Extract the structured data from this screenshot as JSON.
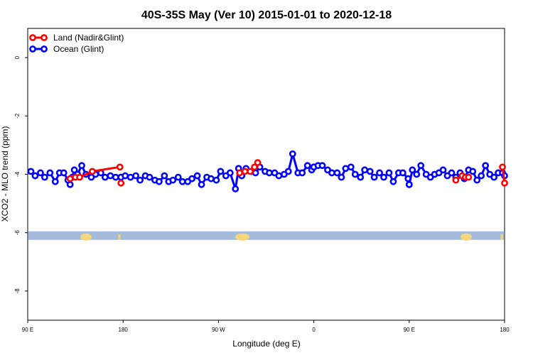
{
  "chart_data": {
    "type": "line",
    "title": "40S-35S May (Ver 10)   2015-01-01 to 2020-12-18",
    "xlabel": "Longitude (deg E)",
    "ylabel": "XCO2 - MLO trend (ppm)",
    "xlim": [
      90,
      450
    ],
    "ylim": [
      -9,
      1
    ],
    "x_ticks": [
      {
        "value": 90,
        "label": "90 E"
      },
      {
        "value": 180,
        "label": "180"
      },
      {
        "value": 270,
        "label": "90 W"
      },
      {
        "value": 360,
        "label": "0"
      },
      {
        "value": 450,
        "label": "90 E"
      },
      {
        "value": 540,
        "label": "180"
      }
    ],
    "y_ticks": [
      {
        "value": 0,
        "label": "0"
      },
      {
        "value": -2,
        "label": "-2"
      },
      {
        "value": -4,
        "label": "-4"
      },
      {
        "value": -6,
        "label": "-6"
      },
      {
        "value": -8,
        "label": "-8"
      }
    ],
    "legend_position": "top-left",
    "land_band_y": -6.1,
    "series": [
      {
        "name": "Land (Nadir&Glint)",
        "color": "#ff0000",
        "segments": [
          {
            "x": [
              130,
              135,
              139,
              151,
              177
            ],
            "y": [
              -4.15,
              -4.1,
              -4.1,
              -3.9,
              -3.75
            ]
          },
          {
            "x": [
              178
            ],
            "y": [
              -4.3
            ]
          },
          {
            "x": [
              290,
              295,
              300,
              304,
              307
            ],
            "y": [
              -3.95,
              -3.9,
              -3.9,
              -3.75,
              -3.6
            ]
          },
          {
            "x": [
              494,
              500
            ],
            "y": [
              -4.2,
              -4.05
            ]
          },
          {
            "x": [
              503,
              506
            ],
            "y": [
              -4.1,
              -4.1
            ]
          },
          {
            "x": [
              538,
              540
            ],
            "y": [
              -3.75,
              -4.3
            ]
          }
        ]
      },
      {
        "name": "Ocean (Glint)",
        "color": "#0000ff",
        "segments": [
          {
            "x": [
              93,
              97,
              102,
              106,
              111,
              116,
              120,
              124,
              128,
              130,
              132,
              134,
              137,
              141,
              145,
              150,
              154,
              159,
              163,
              168,
              173,
              178
            ],
            "y": [
              -3.9,
              -4.05,
              -3.95,
              -4.1,
              -3.95,
              -4.25,
              -3.95,
              -3.95,
              -4.2,
              -4.35,
              -4.1,
              -3.85,
              -4.0,
              -3.7,
              -4.0,
              -4.1,
              -4.0,
              -3.95,
              -4.1,
              -4.05,
              -4.1,
              -4.1
            ]
          },
          {
            "x": [
              178,
              182,
              187,
              192,
              196,
              201,
              205,
              210,
              214,
              219,
              223,
              227,
              232,
              236,
              241,
              245,
              250,
              254,
              259,
              263,
              268,
              272,
              277,
              281,
              286,
              289
            ],
            "y": [
              -4.1,
              -4.05,
              -4.1,
              -4.05,
              -4.2,
              -4.05,
              -4.1,
              -4.2,
              -4.25,
              -4.05,
              -4.25,
              -4.2,
              -4.1,
              -4.25,
              -4.25,
              -4.15,
              -4.05,
              -4.35,
              -4.1,
              -4.15,
              -4.2,
              -3.9,
              -4.05,
              -3.95,
              -4.5,
              -3.8
            ]
          },
          {
            "x": [
              289,
              292,
              296,
              301,
              305,
              309,
              314,
              318,
              323,
              327,
              332,
              336,
              340,
              345,
              349,
              354,
              358,
              360
            ],
            "y": [
              -3.8,
              -4.05,
              -3.8,
              -3.9,
              -3.95,
              -3.75,
              -3.9,
              -3.95,
              -3.95,
              -4.05,
              -4.0,
              -3.9,
              -3.3,
              -3.95,
              -3.95,
              -3.7,
              -3.85,
              -3.75
            ]
          },
          {
            "x": [
              360,
              364,
              368,
              373,
              377,
              382,
              386,
              390,
              395,
              399,
              404,
              408,
              413,
              417,
              422,
              426,
              431,
              435,
              440,
              444,
              449,
              450
            ],
            "y": [
              -3.75,
              -3.7,
              -3.7,
              -3.85,
              -3.95,
              -3.95,
              -4.1,
              -3.8,
              -3.75,
              -4.0,
              -4.1,
              -3.85,
              -3.9,
              -4.1,
              -3.95,
              -4.1,
              -3.95,
              -4.25,
              -3.95,
              -3.95,
              -4.15,
              -4.35
            ]
          },
          {
            "x": [
              450,
              453,
              457,
              461,
              466,
              470,
              474,
              478,
              482,
              486,
              490,
              494,
              498,
              502,
              506,
              510,
              514,
              518,
              522,
              526,
              530,
              534,
              538,
              540
            ],
            "y": [
              -4.35,
              -3.85,
              -4.0,
              -3.7,
              -4.0,
              -4.1,
              -4.0,
              -3.95,
              -3.85,
              -4.05,
              -3.95,
              -4.1,
              -3.95,
              -4.15,
              -3.85,
              -3.9,
              -4.2,
              -4.05,
              -3.7,
              -4.0,
              -4.1,
              -3.95,
              -3.95,
              -4.05
            ]
          }
        ]
      }
    ]
  }
}
